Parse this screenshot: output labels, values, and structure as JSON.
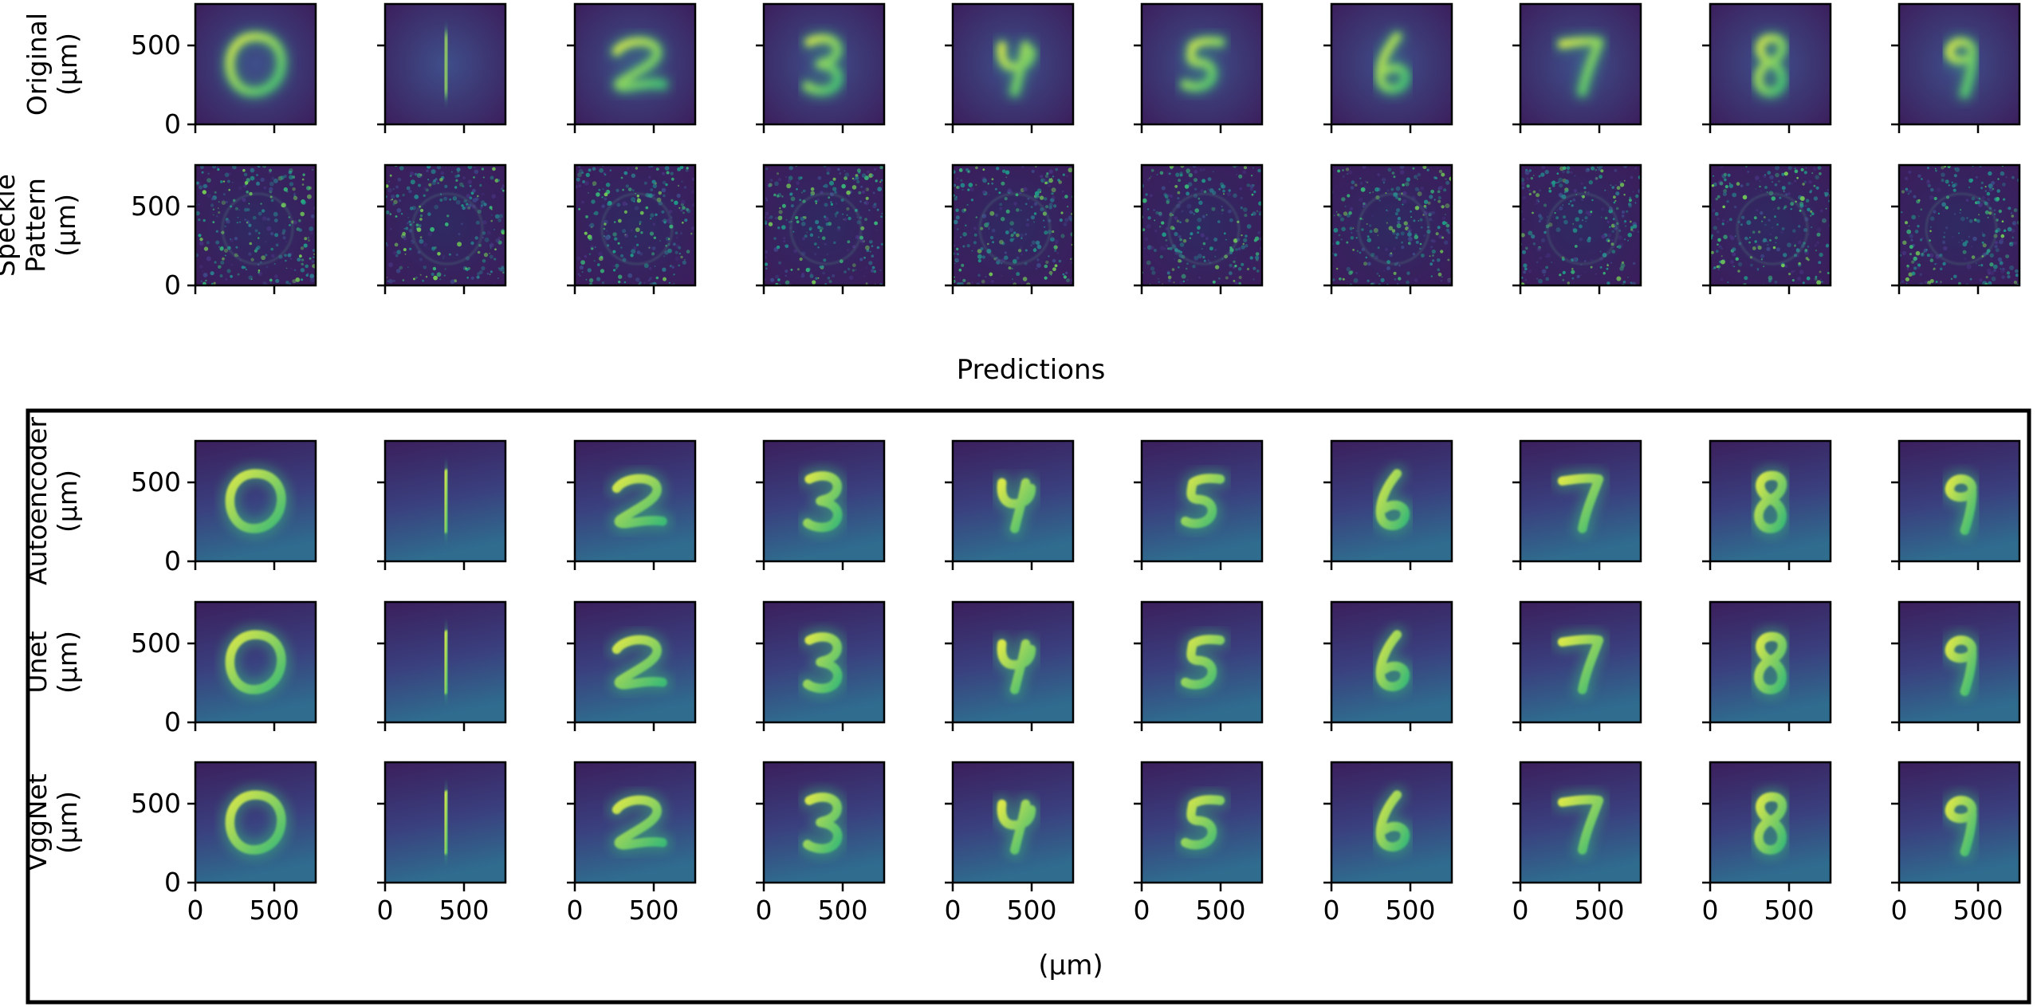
{
  "figure": {
    "digits": [
      "0",
      "1",
      "2",
      "3",
      "4",
      "5",
      "6",
      "7",
      "8",
      "9"
    ],
    "rows": [
      {
        "id": "original",
        "label_lines": [
          "Original",
          "(µm)"
        ],
        "style": "clean"
      },
      {
        "id": "speckle",
        "label_lines": [
          "Speckle",
          "Pattern",
          "(µm)"
        ],
        "style": "speckle"
      },
      {
        "id": "autoencoder",
        "label_lines": [
          "Autoencoder",
          "(µm)"
        ],
        "style": "smooth"
      },
      {
        "id": "unet",
        "label_lines": [
          "Unet",
          "(µm)"
        ],
        "style": "smooth"
      },
      {
        "id": "vggnet",
        "label_lines": [
          "VggNet",
          "(µm)"
        ],
        "style": "smooth"
      }
    ],
    "predictions_title": "Predictions",
    "x_axis_label": "(µm)",
    "x_tick_labels": [
      "0",
      "500"
    ],
    "y_tick_labels": [
      "500",
      "0"
    ],
    "colormap": "viridis",
    "colors": {
      "background_dark": "#3b1f5c",
      "background_mid": "#3b4a8a",
      "feature_bright": "#d9e74a",
      "feature_green": "#3cbb75"
    }
  }
}
